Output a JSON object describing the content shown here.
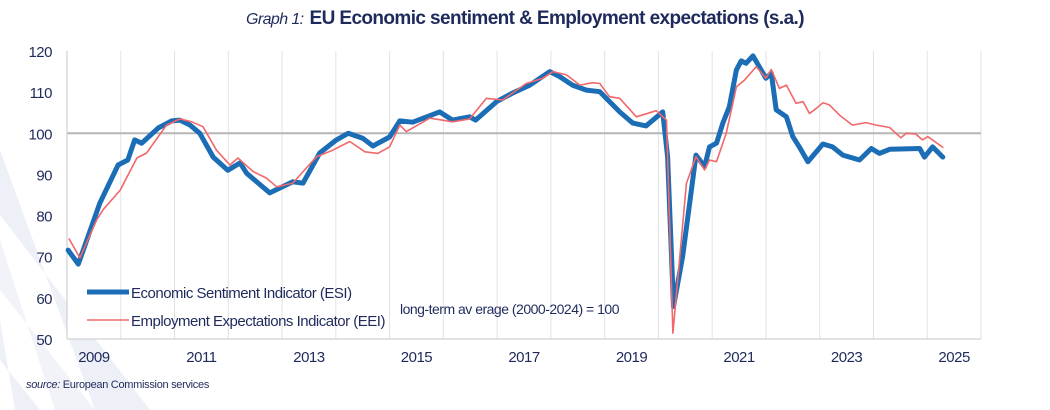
{
  "title": {
    "prefix": "Graph 1:",
    "main": "EU Economic sentiment & Employment expectations (s.a.)"
  },
  "source": {
    "label": "source:",
    "text": "European Commission services"
  },
  "colors": {
    "esi": "#1b6db5",
    "eei": "#f2686a",
    "reference_line": "#b5b5b5",
    "text": "#1f2a5c",
    "grid": "#e2e2e2",
    "background_stripes": "#eef0f8"
  },
  "chart_data": {
    "type": "line",
    "title": "EU Economic sentiment & Employment expectations (s.a.)",
    "xlabel": "",
    "ylabel": "",
    "x_units": "decimal year",
    "xlim": [
      2009.0,
      2026.0
    ],
    "ylim": [
      50,
      120
    ],
    "yticks": [
      50,
      60,
      70,
      80,
      90,
      100,
      110,
      120
    ],
    "xtick_labels": [
      "2009",
      "2011",
      "2013",
      "2015",
      "2017",
      "2019",
      "2021",
      "2023",
      "2025"
    ],
    "grid": "vertical gridlines at each year",
    "legend": "bottom-left",
    "reference_line": {
      "y": 100,
      "label": "long-term av erage (2000-2024) = 100"
    },
    "series": [
      {
        "name": "Economic Sentiment Indicator (ESI)",
        "color": "#1b6db5",
        "points": [
          [
            2009.02,
            71.6
          ],
          [
            2009.21,
            68.2
          ],
          [
            2009.61,
            83
          ],
          [
            2009.95,
            92.3
          ],
          [
            2010.13,
            93.5
          ],
          [
            2010.26,
            98.4
          ],
          [
            2010.39,
            97.6
          ],
          [
            2010.7,
            101.3
          ],
          [
            2010.95,
            103
          ],
          [
            2011.1,
            103.2
          ],
          [
            2011.29,
            102
          ],
          [
            2011.47,
            100
          ],
          [
            2011.72,
            94.2
          ],
          [
            2011.99,
            91
          ],
          [
            2012.22,
            92.8
          ],
          [
            2012.34,
            90.3
          ],
          [
            2012.77,
            85.5
          ],
          [
            2012.96,
            86.7
          ],
          [
            2013.2,
            88.2
          ],
          [
            2013.39,
            87.9
          ],
          [
            2013.7,
            95.2
          ],
          [
            2014.01,
            98.4
          ],
          [
            2014.23,
            100
          ],
          [
            2014.5,
            98.8
          ],
          [
            2014.69,
            96.9
          ],
          [
            2015.0,
            99.1
          ],
          [
            2015.19,
            103
          ],
          [
            2015.43,
            102.7
          ],
          [
            2015.93,
            105.2
          ],
          [
            2016.17,
            103.2
          ],
          [
            2016.49,
            104
          ],
          [
            2016.6,
            103.2
          ],
          [
            2016.99,
            107.7
          ],
          [
            2017.29,
            109.8
          ],
          [
            2017.61,
            111.7
          ],
          [
            2017.98,
            115
          ],
          [
            2018.16,
            113.8
          ],
          [
            2018.4,
            111.7
          ],
          [
            2018.66,
            110.5
          ],
          [
            2018.91,
            110.1
          ],
          [
            2019.28,
            105.2
          ],
          [
            2019.52,
            102.5
          ],
          [
            2019.77,
            101.8
          ],
          [
            2020.08,
            105.2
          ],
          [
            2020.17,
            94.3
          ],
          [
            2020.28,
            57.9
          ],
          [
            2020.45,
            70
          ],
          [
            2020.7,
            94.7
          ],
          [
            2020.86,
            91.9
          ],
          [
            2020.95,
            96.7
          ],
          [
            2021.08,
            97.6
          ],
          [
            2021.2,
            102.5
          ],
          [
            2021.32,
            106.5
          ],
          [
            2021.45,
            115.4
          ],
          [
            2021.54,
            117.6
          ],
          [
            2021.63,
            117
          ],
          [
            2021.76,
            118.8
          ],
          [
            2022.0,
            113.4
          ],
          [
            2022.1,
            114.6
          ],
          [
            2022.19,
            105.7
          ],
          [
            2022.38,
            104
          ],
          [
            2022.5,
            99.2
          ],
          [
            2022.62,
            96.7
          ],
          [
            2022.78,
            93.1
          ],
          [
            2023.06,
            97.4
          ],
          [
            2023.24,
            96.7
          ],
          [
            2023.43,
            94.7
          ],
          [
            2023.74,
            93.5
          ],
          [
            2023.96,
            96.3
          ],
          [
            2024.11,
            95.1
          ],
          [
            2024.3,
            96.1
          ],
          [
            2024.86,
            96.3
          ],
          [
            2024.95,
            94.2
          ],
          [
            2025.1,
            96.7
          ],
          [
            2025.29,
            94.2
          ]
        ]
      },
      {
        "name": "Employment Expectations Indicator (EEI)",
        "color": "#f2686a",
        "points": [
          [
            2009.04,
            74.3
          ],
          [
            2009.24,
            69.7
          ],
          [
            2009.55,
            78.9
          ],
          [
            2009.67,
            81.4
          ],
          [
            2009.99,
            86.2
          ],
          [
            2010.3,
            94
          ],
          [
            2010.48,
            95.2
          ],
          [
            2010.85,
            102
          ],
          [
            2011.1,
            103.5
          ],
          [
            2011.32,
            102.8
          ],
          [
            2011.53,
            101.6
          ],
          [
            2011.78,
            95.9
          ],
          [
            2012.03,
            92.3
          ],
          [
            2012.18,
            94
          ],
          [
            2012.46,
            90.7
          ],
          [
            2012.71,
            89.1
          ],
          [
            2012.9,
            87
          ],
          [
            2013.2,
            87.9
          ],
          [
            2013.64,
            94.3
          ],
          [
            2013.94,
            95.9
          ],
          [
            2014.26,
            98
          ],
          [
            2014.54,
            95.5
          ],
          [
            2014.78,
            95.1
          ],
          [
            2015.0,
            96.7
          ],
          [
            2015.19,
            102
          ],
          [
            2015.31,
            100.4
          ],
          [
            2015.75,
            103.7
          ],
          [
            2016.17,
            102.8
          ],
          [
            2016.49,
            103.5
          ],
          [
            2016.8,
            108.5
          ],
          [
            2017.1,
            108.1
          ],
          [
            2017.54,
            112.1
          ],
          [
            2017.85,
            113.4
          ],
          [
            2018.04,
            115
          ],
          [
            2018.29,
            114.2
          ],
          [
            2018.54,
            111.7
          ],
          [
            2018.78,
            112.3
          ],
          [
            2018.91,
            112.1
          ],
          [
            2019.09,
            108.9
          ],
          [
            2019.28,
            108.5
          ],
          [
            2019.59,
            104
          ],
          [
            2019.96,
            105.5
          ],
          [
            2020.15,
            103.2
          ],
          [
            2020.27,
            51.4
          ],
          [
            2020.52,
            87.8
          ],
          [
            2020.7,
            94.3
          ],
          [
            2020.86,
            91.1
          ],
          [
            2020.95,
            93.5
          ],
          [
            2021.08,
            93.1
          ],
          [
            2021.26,
            100
          ],
          [
            2021.45,
            111.3
          ],
          [
            2021.6,
            112.9
          ],
          [
            2021.82,
            116.2
          ],
          [
            2022.0,
            113.4
          ],
          [
            2022.1,
            115.5
          ],
          [
            2022.25,
            110.9
          ],
          [
            2022.38,
            111.7
          ],
          [
            2022.56,
            107.3
          ],
          [
            2022.69,
            107.7
          ],
          [
            2022.81,
            104.8
          ],
          [
            2022.94,
            106.1
          ],
          [
            2023.06,
            107.4
          ],
          [
            2023.18,
            106.9
          ],
          [
            2023.37,
            104.4
          ],
          [
            2023.61,
            102
          ],
          [
            2023.86,
            102.6
          ],
          [
            2024.05,
            102
          ],
          [
            2024.3,
            101.4
          ],
          [
            2024.51,
            98.9
          ],
          [
            2024.61,
            100
          ],
          [
            2024.79,
            99.8
          ],
          [
            2024.91,
            98.4
          ],
          [
            2025.01,
            99.2
          ],
          [
            2025.29,
            96.6
          ]
        ]
      }
    ]
  }
}
